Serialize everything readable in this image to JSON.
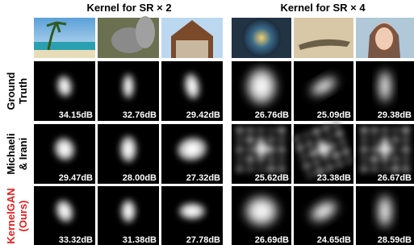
{
  "header": {
    "columns": [
      "Kernel for SR × 2",
      "Kernel for SR × 4"
    ]
  },
  "rows": [
    {
      "label": [
        "Ground",
        "Truth"
      ],
      "psnr": [
        "34.15dB",
        "32.76dB",
        "29.42dB",
        "26.76dB",
        "25.09dB",
        "29.38dB"
      ]
    },
    {
      "label": [
        "Michaeli",
        "& Irani"
      ],
      "psnr": [
        "29.47dB",
        "28.00dB",
        "27.32dB",
        "25.62dB",
        "23.38dB",
        "26.67dB"
      ]
    },
    {
      "label": [
        "KernelGAN",
        "(Ours)"
      ],
      "psnr": [
        "33.32dB",
        "31.38dB",
        "27.78dB",
        "26.69dB",
        "24.65dB",
        "28.59dB"
      ]
    }
  ]
}
